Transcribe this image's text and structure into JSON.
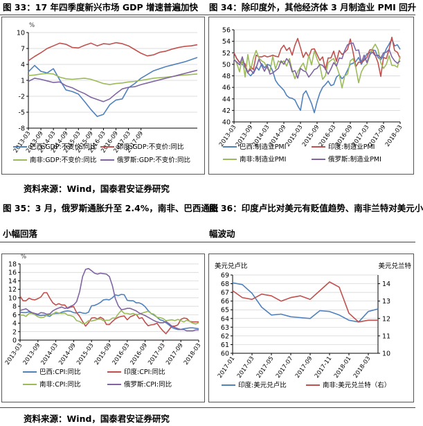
{
  "figures": {
    "f33": {
      "caption": "图 33：17 年四季度新兴市场 GDP 增速普遍加快"
    },
    "f34": {
      "caption": "图 34：除印度外，其他经济体 3 月制造业 PMI 回升"
    },
    "f35": {
      "caption_line1": "图 35：3 月，俄罗斯通胀升至 2.4%，南非、巴西通胀",
      "caption_line2": "小幅回落"
    },
    "f36": {
      "caption_line1": "图 36：印度卢比对美元有贬值趋势、南非兰特对美元小",
      "caption_line2": "幅波动"
    }
  },
  "source_top": "资料来源：Wind，国泰君安证券研究",
  "source_bottom": "资料来源：Wind，国泰君安证券研究",
  "colors": {
    "brazil": "#4f81bd",
    "india": "#c0504d",
    "safrica": "#9bbb59",
    "russia": "#8064a2",
    "grid": "#d0d0d0",
    "axis": "#000000"
  },
  "chart_data": [
    {
      "id": "gdp",
      "type": "line",
      "title": "",
      "unit": "%",
      "ylim": [
        -8,
        10
      ],
      "yticks": [
        -8,
        -5,
        -2,
        1,
        4,
        7,
        10
      ],
      "xlim": [
        0,
        27
      ],
      "x_tick_labels": [
        "2013-03",
        "2013-09",
        "2014-03",
        "2014-09",
        "2015-03",
        "2015-09",
        "2016-03",
        "2016-09",
        "2017-03",
        "2017-09"
      ],
      "x_tick_pos": [
        0,
        2,
        4,
        6,
        8,
        10,
        12,
        14,
        16,
        18
      ],
      "series": [
        {
          "name": "巴西:GDP:不变价:同比",
          "key": "brazil",
          "values": [
            2.6,
            3.8,
            2.7,
            2.4,
            3.2,
            1.1,
            -0.8,
            -1.1,
            -1.6,
            -3.0,
            -4.5,
            -5.8,
            -5.4,
            -3.6,
            -2.7,
            -2.5,
            -0.4,
            0.4,
            1.4,
            2.1,
            2.8,
            3.2,
            3.6,
            3.9,
            4.2,
            4.5,
            4.9,
            5.3
          ]
        },
        {
          "name": "印度:GDP:不变价:同比",
          "key": "india",
          "values": [
            4.7,
            5.5,
            6.2,
            7.0,
            7.5,
            8.0,
            7.8,
            7.2,
            7.1,
            7.6,
            8.0,
            7.5,
            7.9,
            7.8,
            8.1,
            7.9,
            7.5,
            6.8,
            6.1,
            5.6,
            5.8,
            6.3,
            6.5,
            6.9,
            7.2,
            7.4,
            7.5,
            7.7
          ]
        },
        {
          "name": "南非:GDP:不变价:同比",
          "key": "safrica",
          "values": [
            1.9,
            2.0,
            2.2,
            2.3,
            2.2,
            1.6,
            1.3,
            1.2,
            1.3,
            1.4,
            1.2,
            0.8,
            0.4,
            0.2,
            0.4,
            0.5,
            0.7,
            0.8,
            1.0,
            1.2,
            1.4,
            1.5,
            1.6,
            1.7,
            1.9,
            2.0,
            2.1,
            2.2
          ]
        },
        {
          "name": "俄罗斯:GDP:不变价:同比",
          "key": "russia",
          "values": [
            0.8,
            1.4,
            1.2,
            0.9,
            0.6,
            0.7,
            0.0,
            -0.4,
            -1.0,
            -1.5,
            -2.2,
            -2.6,
            -3.0,
            -2.5,
            -1.5,
            -0.6,
            -0.3,
            -0.2,
            0.2,
            0.5,
            0.8,
            1.1,
            1.4,
            1.7,
            2.0,
            2.3,
            2.6,
            2.9
          ]
        }
      ]
    },
    {
      "id": "pmi",
      "type": "line",
      "title": "",
      "ylim": [
        40,
        56
      ],
      "yticks": [
        40,
        42,
        44,
        46,
        48,
        50,
        52,
        54,
        56
      ],
      "xlim": [
        0,
        60
      ],
      "x_tick_labels": [
        "2013-03",
        "2013-09",
        "2014-03",
        "2014-09",
        "2015-03",
        "2015-09",
        "2016-03",
        "2016-09",
        "2017-03",
        "2017-09",
        "2018-03"
      ],
      "x_tick_pos": [
        0,
        6,
        12,
        18,
        24,
        30,
        36,
        42,
        48,
        54,
        60
      ],
      "series": [
        {
          "name": "巴西:制造业PMI",
          "key": "brazil",
          "values": [
            52.0,
            51.0,
            50.3,
            50.0,
            49.5,
            48.5,
            48.0,
            48.6,
            49.6,
            49.0,
            50.1,
            49.4,
            50.0,
            49.8,
            48.8,
            47.2,
            46.5,
            46.0,
            45.5,
            44.6,
            44.2,
            44.1,
            43.8,
            42.8,
            42.0,
            44.8,
            45.4,
            44.3,
            43.2,
            41.6,
            43.5,
            45.0,
            46.0,
            46.5,
            47.1,
            46.3,
            46.5,
            47.8,
            48.2,
            47.5,
            48.0,
            49.0,
            50.0,
            50.2,
            50.5,
            51.2,
            50.0,
            51.0,
            51.8,
            52.0,
            52.5,
            52.4,
            51.2,
            50.8,
            51.5,
            52.7,
            53.5,
            54.4,
            53.2,
            53.4,
            52.6
          ]
        },
        {
          "name": "印度:制造业PMI",
          "key": "india",
          "values": [
            52.0,
            51.0,
            50.4,
            50.3,
            50.1,
            48.5,
            49.6,
            49.1,
            51.6,
            51.3,
            51.3,
            51.5,
            51.3,
            51.4,
            51.6,
            51.4,
            51.3,
            52.7,
            53.3,
            52.4,
            52.9,
            51.6,
            53.3,
            54.5,
            52.9,
            51.2,
            52.1,
            51.3,
            52.6,
            52.7,
            51.7,
            50.7,
            51.3,
            49.1,
            51.1,
            51.1,
            52.3,
            50.5,
            52.4,
            51.7,
            52.1,
            52.6,
            54.4,
            52.1,
            49.6,
            50.4,
            50.3,
            50.7,
            51.2,
            52.5,
            52.6,
            51.6,
            50.3,
            47.9,
            51.2,
            51.0,
            52.6,
            54.7,
            52.4,
            52.1,
            51.0
          ]
        },
        {
          "name": "南非:制造业PMI",
          "key": "safrica",
          "values": [
            51.0,
            50.2,
            48.7,
            51.2,
            47.8,
            51.7,
            48.9,
            51.1,
            52.4,
            51.1,
            50.6,
            50.3,
            49.3,
            48.8,
            51.4,
            49.2,
            50.6,
            50.3,
            50.6,
            49.7,
            51.0,
            49.0,
            47.5,
            48.7,
            49.5,
            50.2,
            48.9,
            51.6,
            49.9,
            52.3,
            50.9,
            49.8,
            47.4,
            48.0,
            50.3,
            50.7,
            51.0,
            49.7,
            48.3,
            45.9,
            48.0,
            48.3,
            50.6,
            51.0,
            49.4,
            46.8,
            48.7,
            49.6,
            50.0,
            51.4,
            52.7,
            53.5,
            52.6,
            50.3,
            49.3,
            50.0,
            51.5,
            49.8,
            49.8,
            49.5,
            51.4
          ]
        },
        {
          "name": "俄罗斯:制造业PMI",
          "key": "russia",
          "values": [
            50.8,
            50.4,
            49.9,
            51.3,
            49.5,
            48.7,
            49.1,
            48.4,
            49.4,
            50.9,
            49.8,
            48.8,
            49.8,
            48.3,
            48.5,
            48.9,
            49.3,
            50.6,
            50.0,
            51.0,
            50.4,
            48.7,
            48.9,
            47.6,
            49.3,
            48.9,
            48.7,
            47.8,
            48.4,
            49.1,
            49.3,
            50.0,
            49.8,
            49.2,
            48.3,
            49.2,
            50.3,
            49.7,
            51.1,
            51.0,
            52.4,
            53.4,
            53.6,
            53.7,
            52.4,
            52.5,
            50.3,
            51.6,
            50.3,
            51.7,
            52.1,
            51.5,
            51.6,
            51.1,
            52.0,
            52.1,
            52.6,
            51.3,
            50.6,
            50.2,
            50.6
          ]
        }
      ]
    },
    {
      "id": "cpi",
      "type": "line",
      "title": "",
      "unit": "%",
      "ylim": [
        0,
        18
      ],
      "yticks": [
        0,
        2,
        4,
        6,
        8,
        10,
        12,
        14,
        16,
        18
      ],
      "xlim": [
        0,
        60
      ],
      "x_tick_labels": [
        "2013-03",
        "2013-09",
        "2014-03",
        "2014-09",
        "2015-03",
        "2015-09",
        "2016-03",
        "2016-09",
        "2017-03",
        "2017-09",
        "2018-03"
      ],
      "x_tick_pos": [
        0,
        6,
        12,
        18,
        24,
        30,
        36,
        42,
        48,
        54,
        60
      ],
      "series": [
        {
          "name": "巴西:CPI:同比",
          "key": "brazil",
          "values": [
            6.6,
            6.5,
            6.5,
            6.7,
            6.3,
            6.1,
            5.9,
            5.8,
            5.9,
            5.8,
            5.6,
            6.2,
            6.3,
            6.3,
            6.6,
            6.8,
            6.9,
            6.8,
            6.5,
            6.4,
            6.6,
            6.4,
            6.3,
            6.6,
            8.1,
            8.2,
            8.5,
            8.9,
            9.5,
            9.6,
            9.5,
            10.0,
            10.7,
            10.5,
            10.8,
            10.7,
            9.4,
            9.3,
            9.3,
            8.8,
            8.8,
            8.5,
            7.9,
            7.0,
            6.3,
            5.9,
            5.4,
            4.8,
            4.6,
            4.1,
            3.6,
            3.0,
            2.7,
            2.5,
            2.5,
            2.7,
            2.8,
            2.9,
            2.9,
            2.8,
            2.7
          ]
        },
        {
          "name": "印度:CPI:同比",
          "key": "india",
          "values": [
            10.4,
            9.3,
            9.3,
            9.9,
            9.6,
            9.5,
            9.8,
            10.2,
            11.2,
            11.2,
            9.9,
            8.8,
            8.3,
            8.6,
            8.3,
            8.3,
            7.5,
            7.8,
            7.9,
            6.5,
            5.6,
            4.4,
            3.3,
            4.1,
            5.2,
            5.3,
            5.0,
            5.4,
            5.0,
            3.7,
            3.7,
            4.4,
            5.0,
            5.4,
            5.6,
            5.7,
            4.8,
            5.5,
            5.8,
            6.1,
            5.1,
            5.3,
            4.2,
            3.4,
            3.6,
            3.7,
            4.0,
            3.0,
            2.2,
            1.5,
            2.4,
            3.3,
            3.3,
            3.6,
            4.9,
            5.2,
            5.1,
            4.4,
            4.3,
            4.3,
            4.3
          ]
        },
        {
          "name": "南非:CPI:同比",
          "key": "safrica",
          "values": [
            5.9,
            5.9,
            5.6,
            6.3,
            6.3,
            6.0,
            5.5,
            5.3,
            5.4,
            5.9,
            6.0,
            6.1,
            6.6,
            6.4,
            6.3,
            6.4,
            5.9,
            5.8,
            5.5,
            4.6,
            4.4,
            3.9,
            4.0,
            4.6,
            4.5,
            4.7,
            4.9,
            5.0,
            4.6,
            4.7,
            4.7,
            5.2,
            5.2,
            6.2,
            7.0,
            6.3,
            6.3,
            6.1,
            6.3,
            6.0,
            6.1,
            6.4,
            6.6,
            6.8,
            6.3,
            6.1,
            5.4,
            5.3,
            5.1,
            4.6,
            4.7,
            4.8,
            4.6,
            4.9,
            4.6,
            4.3,
            4.7,
            4.4,
            4.0,
            3.8,
            4.1
          ]
        },
        {
          "name": "俄罗斯:CPI:同比",
          "key": "russia",
          "values": [
            7.0,
            7.2,
            7.4,
            6.9,
            6.5,
            6.3,
            6.1,
            6.5,
            6.4,
            6.1,
            6.2,
            6.9,
            7.3,
            7.6,
            7.8,
            7.5,
            7.6,
            8.0,
            8.3,
            9.1,
            11.4,
            15.0,
            16.7,
            16.9,
            16.4,
            15.8,
            15.6,
            15.8,
            15.7,
            15.6,
            15.0,
            12.9,
            9.8,
            8.1,
            7.2,
            7.3,
            7.5,
            7.5,
            7.2,
            6.9,
            6.4,
            6.1,
            5.8,
            5.4,
            5.0,
            4.6,
            4.3,
            4.1,
            4.1,
            4.4,
            3.9,
            3.3,
            3.0,
            2.7,
            2.5,
            2.5,
            2.2,
            2.2,
            2.2,
            2.4,
            2.4
          ]
        }
      ]
    },
    {
      "id": "fx",
      "type": "line",
      "title": "",
      "left_axis_title": "美元兑卢比",
      "right_axis_title": "美元兑兰特",
      "ylim": [
        60,
        69
      ],
      "yticks": [
        60,
        61,
        62,
        63,
        64,
        65,
        66,
        67,
        68,
        69
      ],
      "y2lim": [
        10,
        14.5
      ],
      "y2ticks": [
        10,
        11,
        12,
        13,
        14
      ],
      "xlim": [
        0,
        15
      ],
      "x_tick_labels": [
        "2017-01",
        "2017-03",
        "2017-05",
        "2017-07",
        "2017-09",
        "2017-11",
        "2018-01",
        "2018-03"
      ],
      "x_tick_pos": [
        0,
        2,
        4,
        6,
        8,
        10,
        12,
        14
      ],
      "series": [
        {
          "name": "印度:美元兑卢比",
          "key": "brazil",
          "axis": "left",
          "values": [
            68.1,
            67.9,
            66.9,
            65.3,
            64.4,
            64.5,
            64.2,
            64.1,
            64.0,
            64.9,
            64.8,
            64.4,
            63.8,
            63.6,
            64.8,
            65.1
          ]
        },
        {
          "name": "南非:美元兑兰特（右）",
          "key": "india",
          "axis": "right",
          "values": [
            13.6,
            13.2,
            13.1,
            13.4,
            13.3,
            13.0,
            13.2,
            13.3,
            13.1,
            13.6,
            14.1,
            13.8,
            12.3,
            11.8,
            11.9,
            11.9
          ]
        }
      ]
    }
  ]
}
